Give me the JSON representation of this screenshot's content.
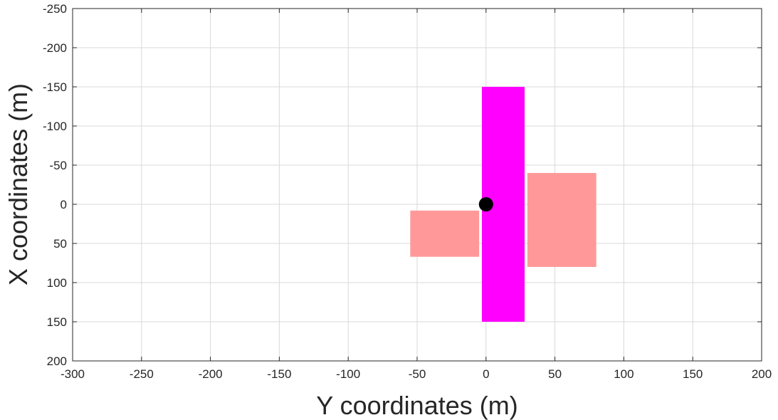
{
  "chart_data": {
    "type": "scatter",
    "xlabel": "Y coordinates (m)",
    "ylabel": "X coordinates (m)",
    "xlim": [
      -300,
      200
    ],
    "ylim": [
      -250,
      200
    ],
    "y_axis_reversed": true,
    "grid": true,
    "xticks": [
      "-300",
      "-250",
      "-200",
      "-150",
      "-100",
      "-50",
      "0",
      "50",
      "100",
      "150",
      "200"
    ],
    "yticks": [
      "-250",
      "-200",
      "-150",
      "-100",
      "-50",
      "0",
      "50",
      "100",
      "150",
      "200"
    ],
    "rectangles": [
      {
        "y_range": [
          -55,
          -5
        ],
        "x_range": [
          8,
          67
        ],
        "color": "#ff9999"
      },
      {
        "y_range": [
          30,
          80
        ],
        "x_range": [
          -40,
          80
        ],
        "color": "#ff9999"
      },
      {
        "y_range": [
          -3,
          28
        ],
        "x_range": [
          -150,
          150
        ],
        "color": "#ff00ff"
      }
    ],
    "points": [
      {
        "y": 0,
        "x": 0,
        "color": "#000000"
      }
    ]
  }
}
